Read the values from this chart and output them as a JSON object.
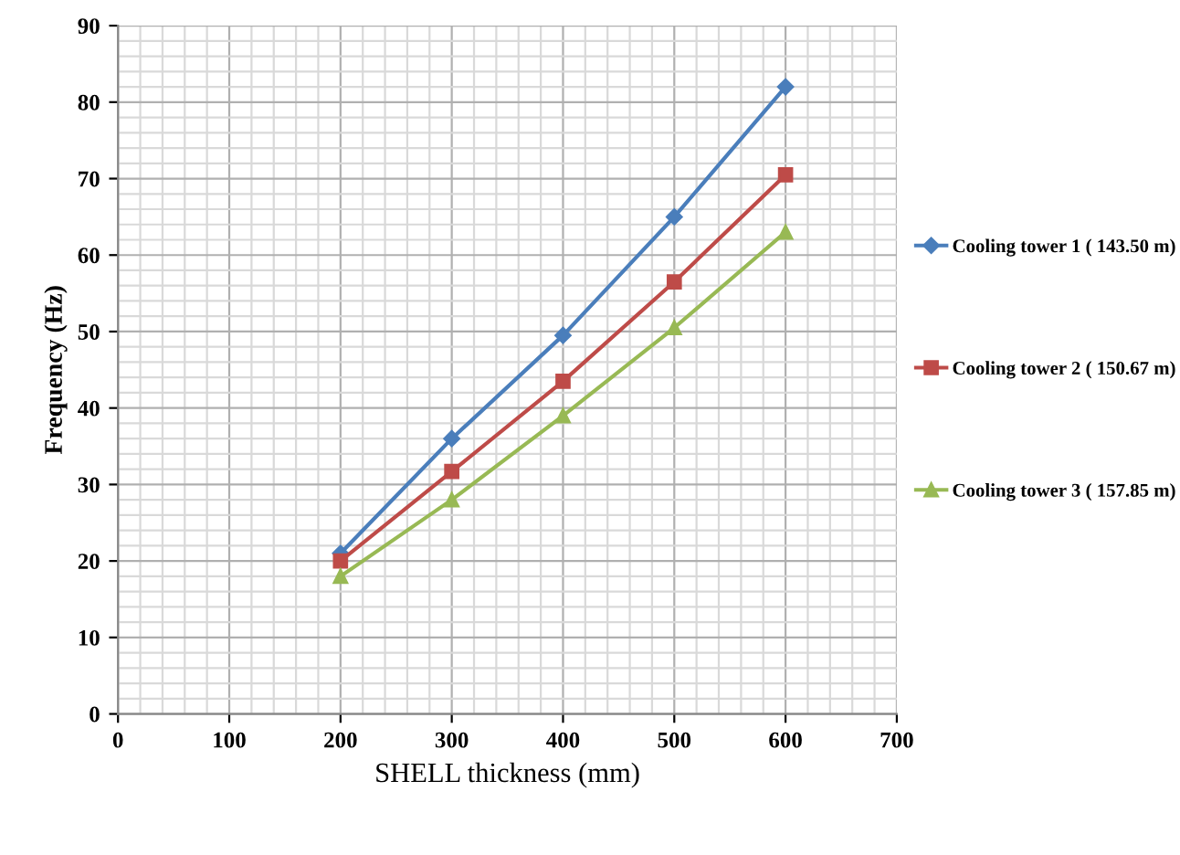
{
  "chart_data": {
    "type": "line",
    "xlabel": "SHELL thickness (mm)",
    "ylabel": "Frequency (Hz)",
    "x": [
      200,
      300,
      400,
      500,
      600
    ],
    "series": [
      {
        "name": "Cooling tower 1 ( 143.50 m)",
        "color": "#4a7ebb",
        "marker": "diamond",
        "values": [
          21,
          36,
          49.5,
          65,
          82
        ]
      },
      {
        "name": "Cooling tower 2 ( 150.67 m)",
        "color": "#be4b48",
        "marker": "square",
        "values": [
          20,
          31.7,
          43.5,
          56.5,
          70.5
        ]
      },
      {
        "name": "Cooling tower 3 ( 157.85 m)",
        "color": "#98b954",
        "marker": "triangle",
        "values": [
          18,
          28,
          39,
          50.5,
          63
        ]
      }
    ],
    "xlim": [
      0,
      700
    ],
    "xticks": [
      0,
      100,
      200,
      300,
      400,
      500,
      600,
      700
    ],
    "ylim": [
      0,
      90
    ],
    "yticks": [
      0,
      10,
      20,
      30,
      40,
      50,
      60,
      70,
      80,
      90
    ],
    "grid": true,
    "legend": "right",
    "line_style": "solid"
  }
}
